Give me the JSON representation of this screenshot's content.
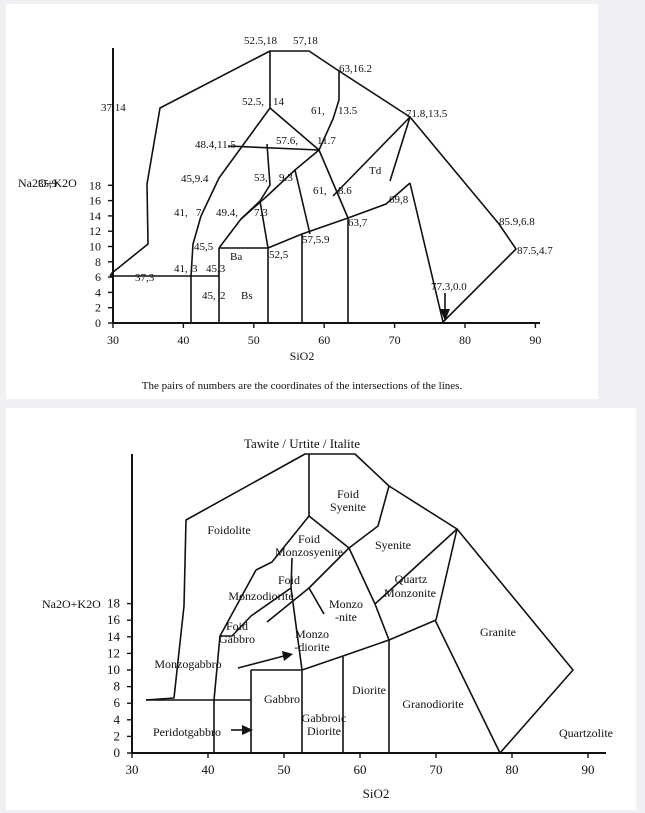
{
  "top": {
    "ylabel": "Na2O+K2O",
    "xlabel": "SiO2",
    "caption": "The pairs of numbers are  the coordinates of the intersections of the lines.",
    "x_ticks": [
      "30",
      "40",
      "50",
      "60",
      "70",
      "80",
      "90"
    ],
    "y_ticks": [
      "0",
      "2",
      "4",
      "6",
      "8",
      "10",
      "12",
      "14",
      "16",
      "18"
    ],
    "point_labels": [
      "52.5,18",
      "57,18",
      "63,16.2",
      "37,14",
      "52.5,",
      "14",
      "61,",
      "13.5",
      "71.8,13.5",
      "48.4,11.5",
      "57.6,",
      "11.7",
      "45,9.4",
      "53,",
      "9.3",
      "Td",
      "35,9",
      "61,",
      "8.6",
      "69,8",
      "41,",
      "7",
      "49.4,",
      "7.3",
      "63,7",
      "85.9,6.8",
      "45,5",
      "57,5.9",
      "Ba",
      "52,5",
      "87.5,4.7",
      "37,3",
      "41,",
      "3",
      "45,3",
      "77.3,0.0",
      "45,",
      "2",
      "Bs"
    ],
    "field_labels": []
  },
  "bottom": {
    "title": "Tawite / Urtite / Italite",
    "ylabel": "Na2O+K2O",
    "xlabel": "SiO2",
    "x_ticks": [
      "30",
      "40",
      "50",
      "60",
      "70",
      "80",
      "90"
    ],
    "y_ticks": [
      "0",
      "2",
      "4",
      "6",
      "8",
      "10",
      "12",
      "14",
      "16",
      "18"
    ],
    "fields": [
      "Foid",
      "Syenite",
      "Foidolite",
      "Foid",
      "Monzosyenite",
      "Syenite",
      "Foid",
      "Monzodiorite",
      "Monzo",
      "-nite",
      "Quartz",
      "Monzonite",
      "Foid",
      "Gabbro",
      "Monzo",
      "-diorite",
      "Granite",
      "Monzogabbro",
      "Gabbro",
      "Diorite",
      "Granodiorite",
      "Gabbroic",
      "Diorite",
      "Peridotgabbro",
      "Quartzolite"
    ]
  }
}
